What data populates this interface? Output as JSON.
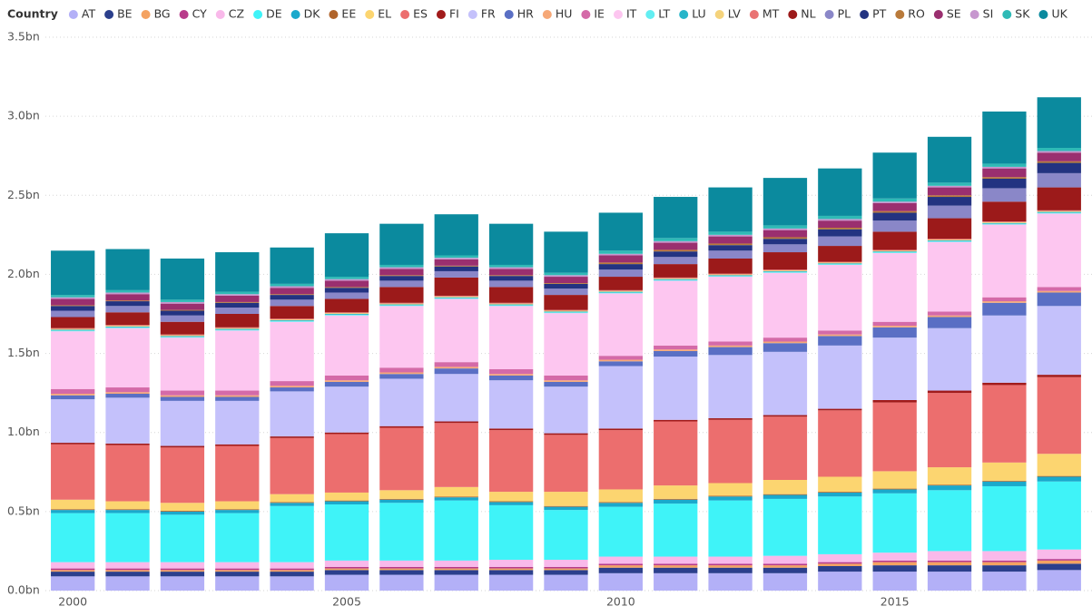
{
  "chart_data": {
    "type": "stacked_bar",
    "legend_title": "Country",
    "legend_position": "top-left",
    "grid": true,
    "x": [
      2000,
      2001,
      2002,
      2003,
      2004,
      2005,
      2006,
      2007,
      2008,
      2009,
      2010,
      2011,
      2012,
      2013,
      2014,
      2015,
      2016,
      2017,
      2018
    ],
    "xlim": [
      1999.5,
      2018.6
    ],
    "xticks": [
      2000,
      2005,
      2010,
      2015
    ],
    "ylim": [
      0,
      3.5
    ],
    "yticks": [
      {
        "value": 0,
        "label": "0.0bn"
      },
      {
        "value": 0.5,
        "label": "0.5bn"
      },
      {
        "value": 1,
        "label": "1.0bn"
      },
      {
        "value": 1.5,
        "label": "1.5bn"
      },
      {
        "value": 2,
        "label": "2.0bn"
      },
      {
        "value": 2.5,
        "label": "2.5bn"
      },
      {
        "value": 3,
        "label": "3.0bn"
      },
      {
        "value": 3.5,
        "label": "3.5bn"
      }
    ],
    "series": [
      {
        "name": "AT",
        "color": "#b3b0f7",
        "values": [
          0.09,
          0.09,
          0.09,
          0.09,
          0.09,
          0.1,
          0.1,
          0.1,
          0.1,
          0.1,
          0.11,
          0.11,
          0.11,
          0.11,
          0.12,
          0.12,
          0.12,
          0.12,
          0.13
        ]
      },
      {
        "name": "BE",
        "color": "#2b3f8c",
        "values": [
          0.03,
          0.03,
          0.03,
          0.03,
          0.03,
          0.03,
          0.03,
          0.03,
          0.03,
          0.03,
          0.035,
          0.035,
          0.035,
          0.035,
          0.035,
          0.04,
          0.04,
          0.04,
          0.04
        ]
      },
      {
        "name": "BG",
        "color": "#f4a261",
        "values": [
          0.01,
          0.01,
          0.01,
          0.01,
          0.01,
          0.01,
          0.01,
          0.01,
          0.01,
          0.01,
          0.015,
          0.015,
          0.015,
          0.015,
          0.015,
          0.02,
          0.02,
          0.02,
          0.02
        ]
      },
      {
        "name": "CY",
        "color": "#b83b8a",
        "values": [
          0.01,
          0.01,
          0.01,
          0.01,
          0.01,
          0.01,
          0.01,
          0.01,
          0.01,
          0.01,
          0.01,
          0.01,
          0.01,
          0.01,
          0.01,
          0.01,
          0.01,
          0.01,
          0.01
        ]
      },
      {
        "name": "CZ",
        "color": "#f9b9ea",
        "values": [
          0.04,
          0.04,
          0.04,
          0.04,
          0.04,
          0.04,
          0.04,
          0.04,
          0.045,
          0.045,
          0.045,
          0.045,
          0.045,
          0.05,
          0.05,
          0.05,
          0.06,
          0.06,
          0.06
        ]
      },
      {
        "name": "DE",
        "color": "#3ff3f8",
        "values": [
          0.31,
          0.31,
          0.3,
          0.31,
          0.355,
          0.355,
          0.365,
          0.38,
          0.345,
          0.315,
          0.315,
          0.335,
          0.355,
          0.36,
          0.365,
          0.375,
          0.385,
          0.41,
          0.43
        ]
      },
      {
        "name": "DK",
        "color": "#1aa9cc",
        "values": [
          0.02,
          0.02,
          0.02,
          0.02,
          0.02,
          0.02,
          0.02,
          0.02,
          0.02,
          0.02,
          0.025,
          0.025,
          0.025,
          0.025,
          0.025,
          0.025,
          0.03,
          0.03,
          0.03
        ]
      },
      {
        "name": "EE",
        "color": "#b0642b",
        "values": [
          0.005,
          0.005,
          0.005,
          0.005,
          0.005,
          0.005,
          0.005,
          0.005,
          0.005,
          0.005,
          0.005,
          0.005,
          0.005,
          0.005,
          0.005,
          0.005,
          0.005,
          0.005,
          0.005
        ]
      },
      {
        "name": "EL",
        "color": "#fcd570",
        "values": [
          0.06,
          0.05,
          0.05,
          0.05,
          0.05,
          0.05,
          0.055,
          0.06,
          0.06,
          0.09,
          0.08,
          0.085,
          0.08,
          0.09,
          0.095,
          0.11,
          0.11,
          0.115,
          0.14
        ]
      },
      {
        "name": "ES",
        "color": "#ec6e6e",
        "values": [
          0.35,
          0.355,
          0.35,
          0.35,
          0.355,
          0.37,
          0.395,
          0.405,
          0.39,
          0.36,
          0.375,
          0.405,
          0.4,
          0.4,
          0.42,
          0.435,
          0.47,
          0.49,
          0.485
        ]
      },
      {
        "name": "FI",
        "color": "#a11b1b",
        "values": [
          0.01,
          0.01,
          0.01,
          0.01,
          0.01,
          0.01,
          0.01,
          0.01,
          0.01,
          0.01,
          0.01,
          0.01,
          0.01,
          0.01,
          0.01,
          0.015,
          0.015,
          0.015,
          0.015
        ]
      },
      {
        "name": "FR",
        "color": "#c4c1fb",
        "values": [
          0.275,
          0.29,
          0.285,
          0.275,
          0.285,
          0.29,
          0.3,
          0.3,
          0.305,
          0.295,
          0.395,
          0.4,
          0.4,
          0.4,
          0.4,
          0.395,
          0.395,
          0.425,
          0.435
        ]
      },
      {
        "name": "HR",
        "color": "#5a6fc4",
        "values": [
          0.025,
          0.025,
          0.025,
          0.025,
          0.025,
          0.03,
          0.03,
          0.035,
          0.03,
          0.03,
          0.03,
          0.035,
          0.05,
          0.055,
          0.06,
          0.065,
          0.07,
          0.08,
          0.085
        ]
      },
      {
        "name": "HU",
        "color": "#f6a877",
        "values": [
          0.01,
          0.01,
          0.01,
          0.01,
          0.01,
          0.01,
          0.01,
          0.01,
          0.01,
          0.01,
          0.01,
          0.01,
          0.01,
          0.01,
          0.01,
          0.01,
          0.01,
          0.01,
          0.01
        ]
      },
      {
        "name": "IE",
        "color": "#d46aa8",
        "values": [
          0.03,
          0.03,
          0.03,
          0.03,
          0.03,
          0.03,
          0.03,
          0.03,
          0.03,
          0.03,
          0.025,
          0.025,
          0.025,
          0.025,
          0.025,
          0.025,
          0.025,
          0.025,
          0.025
        ]
      },
      {
        "name": "IT",
        "color": "#fdc6f0",
        "values": [
          0.365,
          0.375,
          0.335,
          0.38,
          0.375,
          0.38,
          0.39,
          0.4,
          0.4,
          0.395,
          0.395,
          0.41,
          0.41,
          0.41,
          0.415,
          0.435,
          0.44,
          0.46,
          0.465
        ]
      },
      {
        "name": "LT",
        "color": "#63eef2",
        "values": [
          0.005,
          0.005,
          0.005,
          0.005,
          0.005,
          0.005,
          0.005,
          0.005,
          0.005,
          0.005,
          0.005,
          0.005,
          0.005,
          0.005,
          0.005,
          0.005,
          0.005,
          0.005,
          0.005
        ]
      },
      {
        "name": "LU",
        "color": "#27b5c9",
        "values": [
          0.005,
          0.005,
          0.005,
          0.005,
          0.005,
          0.005,
          0.005,
          0.005,
          0.005,
          0.005,
          0.005,
          0.005,
          0.005,
          0.005,
          0.005,
          0.005,
          0.005,
          0.005,
          0.005
        ]
      },
      {
        "name": "LV",
        "color": "#f5d37c",
        "values": [
          0.005,
          0.005,
          0.005,
          0.005,
          0.005,
          0.005,
          0.005,
          0.005,
          0.005,
          0.005,
          0.005,
          0.005,
          0.005,
          0.005,
          0.005,
          0.005,
          0.005,
          0.005,
          0.005
        ]
      },
      {
        "name": "MT",
        "color": "#e97373",
        "values": [
          0.005,
          0.005,
          0.005,
          0.005,
          0.005,
          0.005,
          0.005,
          0.005,
          0.005,
          0.005,
          0.005,
          0.005,
          0.005,
          0.005,
          0.005,
          0.005,
          0.005,
          0.005,
          0.005
        ]
      },
      {
        "name": "NL",
        "color": "#9c1a1a",
        "values": [
          0.07,
          0.08,
          0.08,
          0.085,
          0.08,
          0.085,
          0.1,
          0.115,
          0.1,
          0.095,
          0.085,
          0.085,
          0.095,
          0.11,
          0.1,
          0.115,
          0.13,
          0.125,
          0.145
        ]
      },
      {
        "name": "PL",
        "color": "#8a87c8",
        "values": [
          0.04,
          0.04,
          0.04,
          0.04,
          0.04,
          0.04,
          0.04,
          0.04,
          0.04,
          0.04,
          0.045,
          0.045,
          0.05,
          0.05,
          0.06,
          0.07,
          0.08,
          0.085,
          0.09
        ]
      },
      {
        "name": "PT",
        "color": "#233381",
        "values": [
          0.03,
          0.03,
          0.03,
          0.03,
          0.03,
          0.03,
          0.03,
          0.03,
          0.03,
          0.03,
          0.035,
          0.035,
          0.035,
          0.035,
          0.045,
          0.05,
          0.055,
          0.06,
          0.065
        ]
      },
      {
        "name": "RO",
        "color": "#b97a3a",
        "values": [
          0.005,
          0.005,
          0.005,
          0.005,
          0.005,
          0.005,
          0.005,
          0.005,
          0.005,
          0.005,
          0.01,
          0.01,
          0.01,
          0.01,
          0.01,
          0.01,
          0.01,
          0.01,
          0.01
        ]
      },
      {
        "name": "SE",
        "color": "#9a2f6f",
        "values": [
          0.04,
          0.04,
          0.04,
          0.04,
          0.04,
          0.04,
          0.04,
          0.04,
          0.04,
          0.04,
          0.045,
          0.045,
          0.045,
          0.045,
          0.045,
          0.05,
          0.05,
          0.055,
          0.055
        ]
      },
      {
        "name": "SI",
        "color": "#c797cf",
        "values": [
          0.01,
          0.01,
          0.01,
          0.01,
          0.01,
          0.01,
          0.01,
          0.01,
          0.01,
          0.01,
          0.01,
          0.01,
          0.01,
          0.01,
          0.01,
          0.01,
          0.01,
          0.01,
          0.01
        ]
      },
      {
        "name": "SK",
        "color": "#2fbab6",
        "values": [
          0.015,
          0.015,
          0.015,
          0.015,
          0.015,
          0.015,
          0.015,
          0.015,
          0.015,
          0.015,
          0.02,
          0.02,
          0.02,
          0.02,
          0.02,
          0.02,
          0.02,
          0.02,
          0.02
        ]
      },
      {
        "name": "UK",
        "color": "#0b8a9e",
        "values": [
          0.28,
          0.26,
          0.26,
          0.25,
          0.23,
          0.275,
          0.26,
          0.26,
          0.26,
          0.26,
          0.24,
          0.26,
          0.28,
          0.3,
          0.3,
          0.29,
          0.29,
          0.33,
          0.32
        ]
      }
    ]
  }
}
